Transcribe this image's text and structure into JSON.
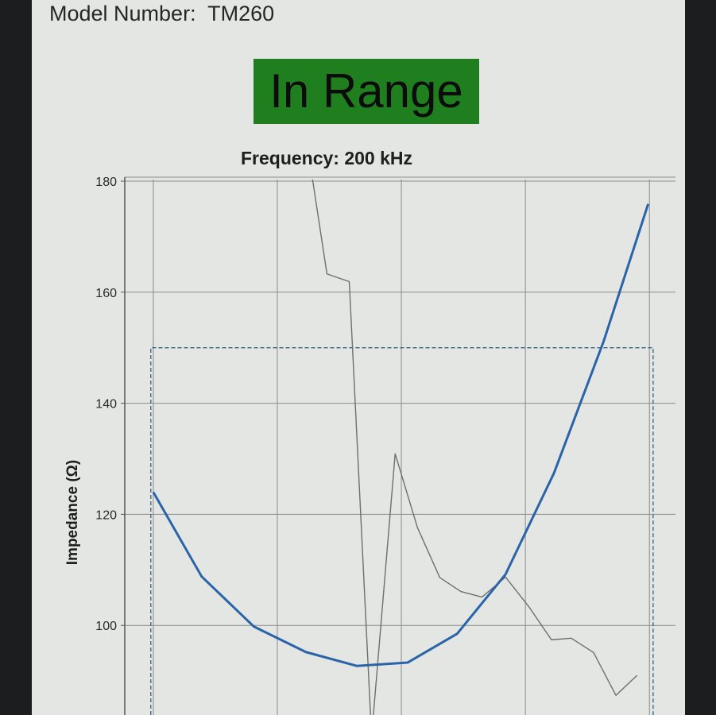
{
  "header": {
    "model_label": "Model Number:",
    "model_value": "TM260"
  },
  "status": {
    "text": "In Range",
    "color": "#1f7f1f"
  },
  "chart_data": {
    "type": "line",
    "title": "Frequency: 200 kHz",
    "ylabel": "Impedance (Ω)",
    "xlabel": "",
    "ylim": [
      84,
      180.5
    ],
    "xlim": [
      -0.23,
      4.21
    ],
    "yticks": [
      100,
      120,
      140,
      160,
      180
    ],
    "grid": true,
    "series": [
      {
        "color": "#2a64a8",
        "x": [
          0,
          0.39,
          0.81,
          1.23,
          1.64,
          2.05,
          2.45,
          2.84,
          3.23,
          3.63,
          3.99
        ],
        "y": [
          124,
          108.8,
          99.8,
          95.2,
          92.7,
          93.3,
          98.5,
          109.2,
          127.4,
          151.1,
          175.9
        ]
      },
      {
        "color": "#6e6e6e",
        "x": [
          1.28,
          1.4,
          1.58,
          1.76,
          1.95,
          2.13,
          2.31,
          2.48,
          2.65,
          2.84,
          3.03,
          3.21,
          3.37,
          3.55,
          3.73,
          3.9
        ],
        "y": [
          180.9,
          163.3,
          161.9,
          80,
          130.9,
          117.6,
          108.6,
          106.1,
          105.1,
          108.7,
          103.3,
          97.4,
          97.7,
          95.1,
          87.4,
          91
        ]
      }
    ],
    "limit_box": {
      "x": [
        -0.02,
        4.03
      ],
      "upper": 150,
      "color": "#3a5f8a"
    }
  }
}
